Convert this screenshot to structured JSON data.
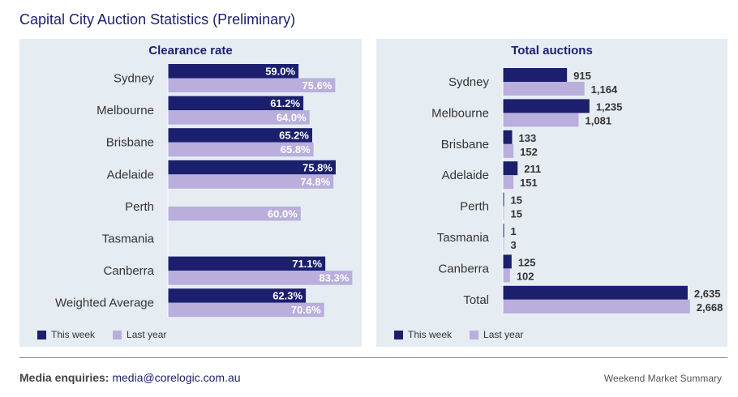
{
  "title": "Capital City Auction Statistics (Preliminary)",
  "colors": {
    "this_week": "#1b1f6e",
    "last_year": "#b9aedc",
    "panel_bg": "#e6edf2",
    "title": "#1b1f6e"
  },
  "legend": {
    "this_week": "This week",
    "last_year": "Last year"
  },
  "chart_data": [
    {
      "type": "bar",
      "orientation": "horizontal",
      "title": "Clearance rate",
      "categories": [
        "Sydney",
        "Melbourne",
        "Brisbane",
        "Adelaide",
        "Perth",
        "Tasmania",
        "Canberra",
        "Weighted Average"
      ],
      "series": [
        {
          "name": "This week",
          "values": [
            59.0,
            61.2,
            65.2,
            75.8,
            null,
            null,
            71.1,
            62.3
          ],
          "labels": [
            "59.0%",
            "61.2%",
            "65.2%",
            "75.8%",
            "",
            "",
            "71.1%",
            "62.3%"
          ]
        },
        {
          "name": "Last year",
          "values": [
            75.6,
            64.0,
            65.8,
            74.8,
            60.0,
            null,
            83.3,
            70.6
          ],
          "labels": [
            "75.6%",
            "64.0%",
            "65.8%",
            "74.8%",
            "60.0%",
            "",
            "83.3%",
            "70.6%"
          ]
        }
      ],
      "xlim": [
        0,
        100
      ],
      "legend_position": "bottom-left"
    },
    {
      "type": "bar",
      "orientation": "horizontal",
      "title": "Total auctions",
      "categories": [
        "Sydney",
        "Melbourne",
        "Brisbane",
        "Adelaide",
        "Perth",
        "Tasmania",
        "Canberra",
        "Total"
      ],
      "series": [
        {
          "name": "This week",
          "values": [
            915,
            1235,
            133,
            211,
            15,
            1,
            125,
            2635
          ],
          "labels": [
            "915",
            "1,235",
            "133",
            "211",
            "15",
            "1",
            "125",
            "2,635"
          ]
        },
        {
          "name": "Last year",
          "values": [
            1164,
            1081,
            152,
            151,
            15,
            3,
            102,
            2668
          ],
          "labels": [
            "1,164",
            "1,081",
            "152",
            "151",
            "15",
            "3",
            "102",
            "2,668"
          ]
        }
      ],
      "xlim": [
        0,
        2800
      ],
      "legend_position": "bottom-left"
    }
  ],
  "footer": {
    "enquiries_label": "Media enquiries:",
    "enquiries_email": "media@corelogic.com.au",
    "right_text": "Weekend Market Summary"
  }
}
